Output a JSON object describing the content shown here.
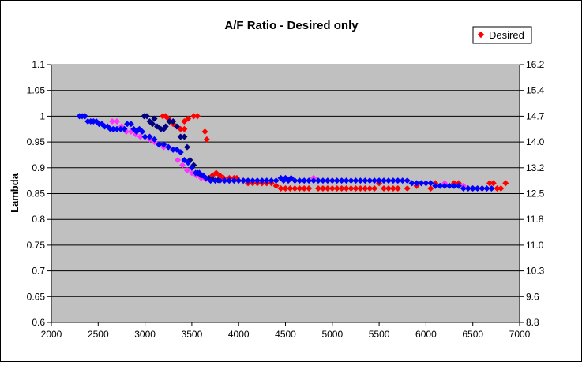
{
  "chart_data": {
    "type": "scatter",
    "title": "A/F Ratio - Desired only",
    "xlabel": "",
    "ylabel": "Lambda",
    "xlim": [
      2000,
      7000
    ],
    "ylim": [
      0.6,
      1.1
    ],
    "y2lim": [
      8.8,
      16.2
    ],
    "xticks": [
      "2000",
      "2500",
      "3000",
      "3500",
      "4000",
      "4500",
      "5000",
      "5500",
      "6000",
      "6500",
      "7000"
    ],
    "yticks": [
      "0.6",
      "0.65",
      "0.7",
      "0.75",
      "0.8",
      "0.85",
      "0.9",
      "0.95",
      "1",
      "1.05",
      "1.1"
    ],
    "y2ticks": [
      "8.8",
      "9.6",
      "10.3",
      "11.0",
      "11.8",
      "12.5",
      "13.2",
      "14.0",
      "14.7",
      "15.4",
      "16.2"
    ],
    "grid": "horizontal",
    "plot_background": "#c0c0c0",
    "legend": {
      "position": "top-right",
      "entries": [
        {
          "label": "Desired",
          "color": "#ff0000",
          "marker": "diamond"
        }
      ]
    },
    "series": [
      {
        "name": "Desired",
        "color": "#ff0000",
        "points": [
          [
            3190,
            1.0
          ],
          [
            3220,
            1.0
          ],
          [
            3250,
            0.995
          ],
          [
            3300,
            0.985
          ],
          [
            3380,
            0.975
          ],
          [
            3420,
            0.975
          ],
          [
            3420,
            0.99
          ],
          [
            3460,
            0.995
          ],
          [
            3520,
            1.0
          ],
          [
            3560,
            1.0
          ],
          [
            3640,
            0.97
          ],
          [
            3660,
            0.955
          ],
          [
            3720,
            0.885
          ],
          [
            3760,
            0.89
          ],
          [
            3800,
            0.885
          ],
          [
            3840,
            0.88
          ],
          [
            3900,
            0.88
          ],
          [
            3950,
            0.88
          ],
          [
            3980,
            0.88
          ],
          [
            4050,
            0.875
          ],
          [
            4100,
            0.87
          ],
          [
            4150,
            0.87
          ],
          [
            4200,
            0.87
          ],
          [
            4250,
            0.87
          ],
          [
            4300,
            0.87
          ],
          [
            4350,
            0.87
          ],
          [
            4400,
            0.865
          ],
          [
            4450,
            0.86
          ],
          [
            4500,
            0.86
          ],
          [
            4550,
            0.86
          ],
          [
            4600,
            0.86
          ],
          [
            4650,
            0.86
          ],
          [
            4700,
            0.86
          ],
          [
            4750,
            0.86
          ],
          [
            4800,
            0.88
          ],
          [
            4850,
            0.86
          ],
          [
            4900,
            0.86
          ],
          [
            4950,
            0.86
          ],
          [
            5000,
            0.86
          ],
          [
            5050,
            0.86
          ],
          [
            5100,
            0.86
          ],
          [
            5150,
            0.86
          ],
          [
            5200,
            0.86
          ],
          [
            5250,
            0.86
          ],
          [
            5300,
            0.86
          ],
          [
            5350,
            0.86
          ],
          [
            5400,
            0.86
          ],
          [
            5450,
            0.86
          ],
          [
            5500,
            0.87
          ],
          [
            5550,
            0.86
          ],
          [
            5600,
            0.86
          ],
          [
            5650,
            0.86
          ],
          [
            5700,
            0.86
          ],
          [
            5800,
            0.86
          ],
          [
            5900,
            0.865
          ],
          [
            6000,
            0.87
          ],
          [
            6050,
            0.86
          ],
          [
            6100,
            0.87
          ],
          [
            6200,
            0.865
          ],
          [
            6300,
            0.87
          ],
          [
            6350,
            0.87
          ],
          [
            6500,
            0.86
          ],
          [
            6600,
            0.86
          ],
          [
            6680,
            0.87
          ],
          [
            6720,
            0.87
          ],
          [
            6760,
            0.86
          ],
          [
            6800,
            0.86
          ],
          [
            6850,
            0.87
          ]
        ]
      },
      {
        "color": "#ff33ff",
        "points": [
          [
            2650,
            0.99
          ],
          [
            2700,
            0.99
          ],
          [
            2750,
            0.98
          ],
          [
            2800,
            0.97
          ],
          [
            2850,
            0.97
          ],
          [
            2900,
            0.965
          ],
          [
            2950,
            0.96
          ],
          [
            3000,
            0.96
          ],
          [
            3050,
            0.955
          ],
          [
            3100,
            0.95
          ],
          [
            3150,
            0.945
          ],
          [
            3200,
            0.94
          ],
          [
            3250,
            0.94
          ],
          [
            3300,
            0.935
          ],
          [
            3350,
            0.915
          ],
          [
            3400,
            0.905
          ],
          [
            3450,
            0.895
          ],
          [
            3500,
            0.89
          ],
          [
            3550,
            0.885
          ],
          [
            3600,
            0.88
          ],
          [
            3650,
            0.878
          ],
          [
            3700,
            0.876
          ],
          [
            3800,
            0.875
          ],
          [
            4700,
            0.875
          ],
          [
            4800,
            0.88
          ],
          [
            5000,
            0.875
          ],
          [
            5400,
            0.875
          ],
          [
            5800,
            0.875
          ],
          [
            6000,
            0.87
          ],
          [
            6200,
            0.87
          ],
          [
            6300,
            0.865
          ],
          [
            6400,
            0.865
          ],
          [
            6500,
            0.86
          ],
          [
            6600,
            0.86
          ]
        ]
      },
      {
        "color": "#000080",
        "points": [
          [
            2990,
            1.0
          ],
          [
            3020,
            1.0
          ],
          [
            3050,
            0.99
          ],
          [
            3080,
            0.985
          ],
          [
            3100,
            0.995
          ],
          [
            3130,
            0.98
          ],
          [
            3170,
            0.975
          ],
          [
            3200,
            0.975
          ],
          [
            3220,
            0.98
          ],
          [
            3260,
            0.99
          ],
          [
            3300,
            0.99
          ],
          [
            3340,
            0.98
          ],
          [
            3380,
            0.96
          ],
          [
            3420,
            0.96
          ],
          [
            3450,
            0.94
          ],
          [
            3480,
            0.915
          ],
          [
            3520,
            0.905
          ],
          [
            3560,
            0.89
          ],
          [
            3600,
            0.885
          ],
          [
            3680,
            0.88
          ],
          [
            3720,
            0.878
          ],
          [
            3780,
            0.876
          ],
          [
            3900,
            0.875
          ]
        ]
      },
      {
        "color": "#0000ff",
        "points": [
          [
            2300,
            1.0
          ],
          [
            2330,
            1.0
          ],
          [
            2360,
            1.0
          ],
          [
            2390,
            0.99
          ],
          [
            2420,
            0.99
          ],
          [
            2450,
            0.99
          ],
          [
            2480,
            0.99
          ],
          [
            2510,
            0.985
          ],
          [
            2540,
            0.985
          ],
          [
            2570,
            0.98
          ],
          [
            2600,
            0.98
          ],
          [
            2630,
            0.975
          ],
          [
            2660,
            0.975
          ],
          [
            2700,
            0.975
          ],
          [
            2740,
            0.975
          ],
          [
            2780,
            0.975
          ],
          [
            2810,
            0.985
          ],
          [
            2850,
            0.985
          ],
          [
            2880,
            0.975
          ],
          [
            2910,
            0.97
          ],
          [
            2940,
            0.975
          ],
          [
            2970,
            0.97
          ],
          [
            3000,
            0.96
          ],
          [
            3050,
            0.96
          ],
          [
            3100,
            0.955
          ],
          [
            3150,
            0.945
          ],
          [
            3200,
            0.945
          ],
          [
            3250,
            0.94
          ],
          [
            3300,
            0.935
          ],
          [
            3340,
            0.935
          ],
          [
            3380,
            0.93
          ],
          [
            3420,
            0.915
          ],
          [
            3460,
            0.91
          ],
          [
            3500,
            0.9
          ],
          [
            3540,
            0.89
          ],
          [
            3580,
            0.89
          ],
          [
            3620,
            0.885
          ],
          [
            3650,
            0.88
          ],
          [
            3700,
            0.875
          ],
          [
            3750,
            0.875
          ],
          [
            3800,
            0.875
          ],
          [
            3850,
            0.875
          ],
          [
            3900,
            0.875
          ],
          [
            3950,
            0.875
          ],
          [
            4000,
            0.875
          ],
          [
            4050,
            0.875
          ],
          [
            4100,
            0.875
          ],
          [
            4150,
            0.875
          ],
          [
            4200,
            0.875
          ],
          [
            4250,
            0.875
          ],
          [
            4300,
            0.875
          ],
          [
            4350,
            0.875
          ],
          [
            4400,
            0.875
          ],
          [
            4450,
            0.88
          ],
          [
            4480,
            0.875
          ],
          [
            4500,
            0.88
          ],
          [
            4530,
            0.875
          ],
          [
            4560,
            0.88
          ],
          [
            4600,
            0.875
          ],
          [
            4650,
            0.875
          ],
          [
            4700,
            0.875
          ],
          [
            4750,
            0.875
          ],
          [
            4800,
            0.875
          ],
          [
            4850,
            0.875
          ],
          [
            4900,
            0.875
          ],
          [
            4950,
            0.875
          ],
          [
            5000,
            0.875
          ],
          [
            5050,
            0.875
          ],
          [
            5100,
            0.875
          ],
          [
            5150,
            0.875
          ],
          [
            5200,
            0.875
          ],
          [
            5250,
            0.875
          ],
          [
            5300,
            0.875
          ],
          [
            5350,
            0.875
          ],
          [
            5400,
            0.875
          ],
          [
            5450,
            0.875
          ],
          [
            5500,
            0.875
          ],
          [
            5550,
            0.875
          ],
          [
            5600,
            0.875
          ],
          [
            5650,
            0.875
          ],
          [
            5700,
            0.875
          ],
          [
            5750,
            0.875
          ],
          [
            5800,
            0.875
          ],
          [
            5850,
            0.87
          ],
          [
            5900,
            0.87
          ],
          [
            5950,
            0.87
          ],
          [
            6000,
            0.87
          ],
          [
            6050,
            0.87
          ],
          [
            6100,
            0.865
          ],
          [
            6150,
            0.865
          ],
          [
            6200,
            0.865
          ],
          [
            6250,
            0.865
          ],
          [
            6300,
            0.865
          ],
          [
            6350,
            0.865
          ],
          [
            6400,
            0.86
          ],
          [
            6450,
            0.86
          ],
          [
            6500,
            0.86
          ],
          [
            6550,
            0.86
          ],
          [
            6600,
            0.86
          ],
          [
            6650,
            0.86
          ],
          [
            6700,
            0.86
          ]
        ]
      }
    ]
  }
}
